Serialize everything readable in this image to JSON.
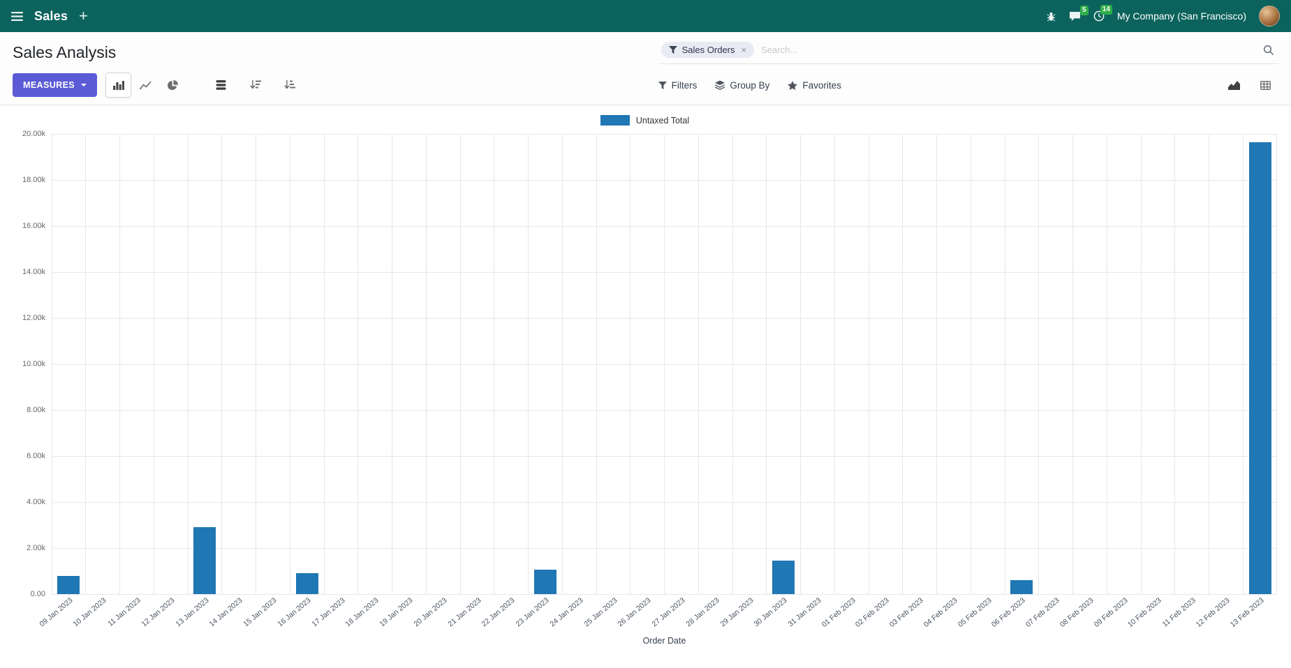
{
  "navbar": {
    "app_name": "Sales",
    "company": "My Company (San Francisco)",
    "messages_badge": "5",
    "activities_badge": "14"
  },
  "control_panel": {
    "title": "Sales Analysis",
    "measures_label": "MEASURES",
    "filters_label": "Filters",
    "group_by_label": "Group By",
    "favorites_label": "Favorites",
    "search": {
      "facet_label": "Sales Orders",
      "facet_remove": "×",
      "placeholder": "Search..."
    }
  },
  "chart_data": {
    "type": "bar",
    "series_name": "Untaxed Total",
    "xlabel": "Order Date",
    "ylabel": "",
    "ylim": [
      0,
      20000
    ],
    "grid": true,
    "legend_position": "top",
    "y_tick_labels": [
      "0.00",
      "2.00k",
      "4.00k",
      "6.00k",
      "8.00k",
      "10.00k",
      "12.00k",
      "14.00k",
      "16.00k",
      "18.00k",
      "20.00k"
    ],
    "categories": [
      "09 Jan 2023",
      "10 Jan 2023",
      "11 Jan 2023",
      "12 Jan 2023",
      "13 Jan 2023",
      "14 Jan 2023",
      "15 Jan 2023",
      "16 Jan 2023",
      "17 Jan 2023",
      "18 Jan 2023",
      "19 Jan 2023",
      "20 Jan 2023",
      "21 Jan 2023",
      "22 Jan 2023",
      "23 Jan 2023",
      "24 Jan 2023",
      "25 Jan 2023",
      "26 Jan 2023",
      "27 Jan 2023",
      "28 Jan 2023",
      "29 Jan 2023",
      "30 Jan 2023",
      "31 Jan 2023",
      "01 Feb 2023",
      "02 Feb 2023",
      "03 Feb 2023",
      "04 Feb 2023",
      "05 Feb 2023",
      "06 Feb 2023",
      "07 Feb 2023",
      "08 Feb 2023",
      "09 Feb 2023",
      "10 Feb 2023",
      "11 Feb 2023",
      "12 Feb 2023",
      "13 Feb 2023"
    ],
    "values": [
      780,
      0,
      0,
      0,
      2900,
      0,
      0,
      900,
      0,
      0,
      0,
      0,
      0,
      0,
      1050,
      0,
      0,
      0,
      0,
      0,
      0,
      1470,
      0,
      0,
      0,
      0,
      0,
      0,
      620,
      0,
      0,
      0,
      0,
      0,
      0,
      19650
    ]
  },
  "colors": {
    "navbar_bg": "#0c635d",
    "accent": "#5b5bd6",
    "bar": "#1f77b4",
    "badge_green": "#2fae49"
  },
  "icons": {
    "menu-icon": "hamburger",
    "plus-icon": "+",
    "bug-icon": "debug bug",
    "messages-icon": "speech bubble",
    "activities-icon": "clock",
    "filter-icon": "funnel",
    "search-icon": "magnifier",
    "bar-chart-icon": "vertical bars",
    "line-chart-icon": "polyline",
    "pie-chart-icon": "pie",
    "stacked-icon": "stacked discs",
    "sort-desc-icon": "descending bars with arrow",
    "sort-asc-icon": "ascending bars with arrow",
    "group-by-icon": "layers",
    "favorites-star-icon": "star",
    "area-chart-view-icon": "filled area chart",
    "pivot-view-icon": "table grid"
  }
}
